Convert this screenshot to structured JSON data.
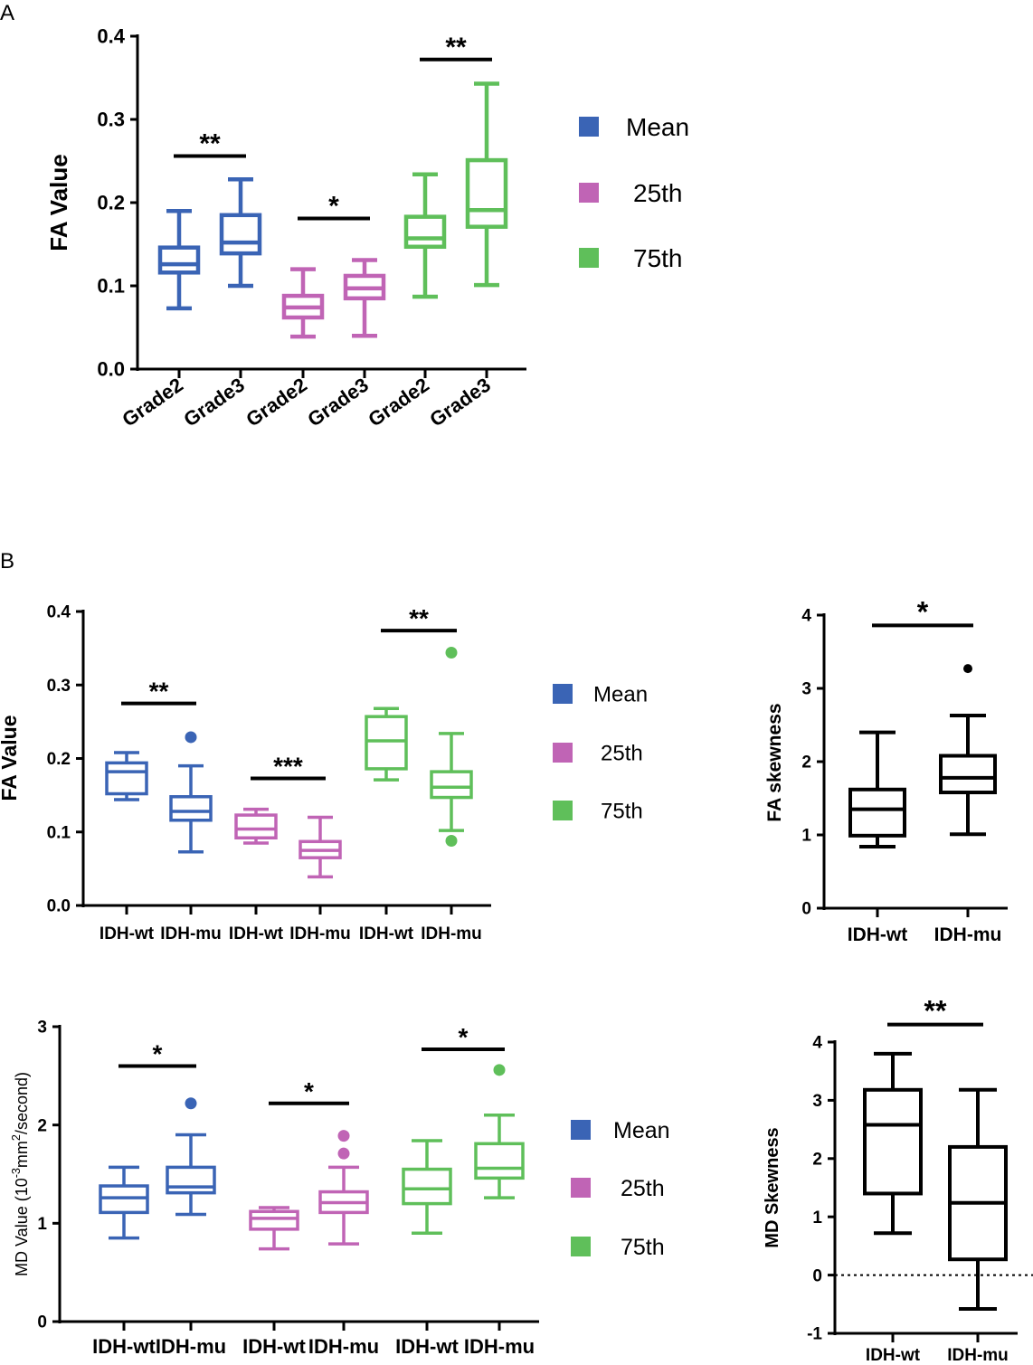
{
  "panel_labels": {
    "a": "A",
    "b": "B"
  },
  "colors": {
    "mean": "#3a64b5",
    "p25": "#c064b5",
    "p75": "#5fbf5a",
    "black": "#000000"
  },
  "chart_data": [
    {
      "id": "A",
      "type": "box",
      "ylabel": "FA Value",
      "ylim": [
        0,
        0.4
      ],
      "yticks": [
        "0.0",
        "0.1",
        "0.2",
        "0.3",
        "0.4"
      ],
      "categories": [
        "Grade2",
        "Grade3",
        "Grade2",
        "Grade3",
        "Grade2",
        "Grade3"
      ],
      "legend": [
        "Mean",
        "25th",
        "75th"
      ],
      "boxes": [
        {
          "group": "Mean",
          "label": "Grade2",
          "whisker_low": 0.073,
          "q1": 0.116,
          "median": 0.126,
          "q3": 0.146,
          "whisker_high": 0.19,
          "outliers": []
        },
        {
          "group": "Mean",
          "label": "Grade3",
          "whisker_low": 0.1,
          "q1": 0.139,
          "median": 0.152,
          "q3": 0.185,
          "whisker_high": 0.228,
          "outliers": []
        },
        {
          "group": "25th",
          "label": "Grade2",
          "whisker_low": 0.039,
          "q1": 0.062,
          "median": 0.074,
          "q3": 0.088,
          "whisker_high": 0.12,
          "outliers": []
        },
        {
          "group": "25th",
          "label": "Grade3",
          "whisker_low": 0.04,
          "q1": 0.085,
          "median": 0.097,
          "q3": 0.112,
          "whisker_high": 0.131,
          "outliers": []
        },
        {
          "group": "75th",
          "label": "Grade2",
          "whisker_low": 0.087,
          "q1": 0.147,
          "median": 0.157,
          "q3": 0.183,
          "whisker_high": 0.234,
          "outliers": []
        },
        {
          "group": "75th",
          "label": "Grade3",
          "whisker_low": 0.101,
          "q1": 0.171,
          "median": 0.191,
          "q3": 0.251,
          "whisker_high": 0.343,
          "outliers": []
        }
      ],
      "sig": [
        {
          "pair": [
            0,
            1
          ],
          "y": 0.256,
          "label": "**"
        },
        {
          "pair": [
            2,
            3
          ],
          "y": 0.181,
          "label": "*"
        },
        {
          "pair": [
            4,
            5
          ],
          "y": 0.372,
          "label": "**"
        }
      ]
    },
    {
      "id": "B-FA",
      "type": "box",
      "ylabel": "FA Value",
      "ylim": [
        0,
        0.4
      ],
      "yticks": [
        "0.0",
        "0.1",
        "0.2",
        "0.3",
        "0.4"
      ],
      "categories": [
        "IDH-wt",
        "IDH-mu",
        "IDH-wt",
        "IDH-mu",
        "IDH-wt",
        "IDH-mu"
      ],
      "legend": [
        "Mean",
        "25th",
        "75th"
      ],
      "boxes": [
        {
          "group": "Mean",
          "label": "IDH-wt",
          "whisker_low": 0.144,
          "q1": 0.152,
          "median": 0.182,
          "q3": 0.194,
          "whisker_high": 0.208,
          "outliers": []
        },
        {
          "group": "Mean",
          "label": "IDH-mu",
          "whisker_low": 0.073,
          "q1": 0.116,
          "median": 0.128,
          "q3": 0.148,
          "whisker_high": 0.19,
          "outliers": [
            0.229
          ]
        },
        {
          "group": "25th",
          "label": "IDH-wt",
          "whisker_low": 0.085,
          "q1": 0.092,
          "median": 0.104,
          "q3": 0.123,
          "whisker_high": 0.131,
          "outliers": []
        },
        {
          "group": "25th",
          "label": "IDH-mu",
          "whisker_low": 0.039,
          "q1": 0.065,
          "median": 0.075,
          "q3": 0.087,
          "whisker_high": 0.12,
          "outliers": []
        },
        {
          "group": "75th",
          "label": "IDH-wt",
          "whisker_low": 0.171,
          "q1": 0.186,
          "median": 0.224,
          "q3": 0.257,
          "whisker_high": 0.268,
          "outliers": []
        },
        {
          "group": "75th",
          "label": "IDH-mu",
          "whisker_low": 0.102,
          "q1": 0.147,
          "median": 0.161,
          "q3": 0.182,
          "whisker_high": 0.234,
          "outliers": [
            0.088,
            0.344
          ]
        }
      ],
      "sig": [
        {
          "pair": [
            0,
            1
          ],
          "y": 0.275,
          "label": "**"
        },
        {
          "pair": [
            2,
            3
          ],
          "y": 0.173,
          "label": "***"
        },
        {
          "pair": [
            4,
            5
          ],
          "y": 0.374,
          "label": "**"
        }
      ]
    },
    {
      "id": "B-FA-skew",
      "type": "box",
      "ylabel": "FA skewness",
      "ylim": [
        0,
        4
      ],
      "yticks": [
        "0",
        "1",
        "2",
        "3",
        "4"
      ],
      "categories": [
        "IDH-wt",
        "IDH-mu"
      ],
      "boxes": [
        {
          "group": "black",
          "label": "IDH-wt",
          "whisker_low": 0.84,
          "q1": 0.99,
          "median": 1.35,
          "q3": 1.62,
          "whisker_high": 2.4,
          "outliers": []
        },
        {
          "group": "black",
          "label": "IDH-mu",
          "whisker_low": 1.01,
          "q1": 1.58,
          "median": 1.78,
          "q3": 2.08,
          "whisker_high": 2.63,
          "outliers": [
            3.27
          ]
        }
      ],
      "sig": [
        {
          "pair": [
            0,
            1
          ],
          "y": 3.86,
          "label": "*"
        }
      ]
    },
    {
      "id": "B-MD",
      "type": "box",
      "ylabel": "MD Value (10",
      "ylabel_exp1": "-3",
      "ylabel_mid": "mm",
      "ylabel_exp2": "2",
      "ylabel_end": "/second)",
      "ylim": [
        0,
        3
      ],
      "yticks": [
        "0",
        "1",
        "2",
        "3"
      ],
      "categories": [
        "IDH-wt",
        "IDH-mu",
        "IDH-wt",
        "IDH-mu",
        "IDH-wt",
        "IDH-mu"
      ],
      "legend": [
        "Mean",
        "25th",
        "75th"
      ],
      "boxes": [
        {
          "group": "Mean",
          "label": "IDH-wt",
          "whisker_low": 0.85,
          "q1": 1.11,
          "median": 1.26,
          "q3": 1.38,
          "whisker_high": 1.57,
          "outliers": []
        },
        {
          "group": "Mean",
          "label": "IDH-mu",
          "whisker_low": 1.09,
          "q1": 1.31,
          "median": 1.37,
          "q3": 1.57,
          "whisker_high": 1.9,
          "outliers": [
            2.22
          ]
        },
        {
          "group": "25th",
          "label": "IDH-wt",
          "whisker_low": 0.74,
          "q1": 0.94,
          "median": 1.05,
          "q3": 1.12,
          "whisker_high": 1.16,
          "outliers": []
        },
        {
          "group": "25th",
          "label": "IDH-mu",
          "whisker_low": 0.79,
          "q1": 1.11,
          "median": 1.21,
          "q3": 1.32,
          "whisker_high": 1.57,
          "outliers": [
            1.71,
            1.89
          ]
        },
        {
          "group": "75th",
          "label": "IDH-wt",
          "whisker_low": 0.9,
          "q1": 1.2,
          "median": 1.35,
          "q3": 1.55,
          "whisker_high": 1.84,
          "outliers": []
        },
        {
          "group": "75th",
          "label": "IDH-mu",
          "whisker_low": 1.26,
          "q1": 1.46,
          "median": 1.56,
          "q3": 1.81,
          "whisker_high": 2.1,
          "outliers": [
            2.56
          ]
        }
      ],
      "sig": [
        {
          "pair": [
            0,
            1
          ],
          "y": 2.6,
          "label": "*"
        },
        {
          "pair": [
            2,
            3
          ],
          "y": 2.22,
          "label": "*"
        },
        {
          "pair": [
            4,
            5
          ],
          "y": 2.77,
          "label": "*"
        }
      ]
    },
    {
      "id": "B-MD-skew",
      "type": "box",
      "ylabel": "MD Skewness",
      "ylim": [
        -1,
        4
      ],
      "yticks": [
        "-1",
        "0",
        "1",
        "2",
        "3",
        "4"
      ],
      "categories": [
        "IDH-wt",
        "IDH-mu"
      ],
      "reference_line": 0,
      "boxes": [
        {
          "group": "black",
          "label": "IDH-wt",
          "whisker_low": 0.72,
          "q1": 1.4,
          "median": 2.58,
          "q3": 3.18,
          "whisker_high": 3.8,
          "outliers": []
        },
        {
          "group": "black",
          "label": "IDH-mu",
          "whisker_low": -0.58,
          "q1": 0.27,
          "median": 1.24,
          "q3": 2.2,
          "whisker_high": 3.18,
          "outliers": []
        }
      ],
      "sig": [
        {
          "pair": [
            0,
            1
          ],
          "y": 4.3,
          "label": "**"
        }
      ]
    }
  ]
}
